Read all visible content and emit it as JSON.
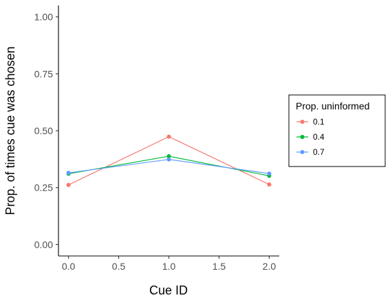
{
  "chart_data": {
    "type": "line",
    "title": "",
    "xlabel": "Cue ID",
    "ylabel": "Prop. of times cue was chosen",
    "xlim": [
      -0.1,
      2.1
    ],
    "ylim": [
      -0.05,
      1.05
    ],
    "x_ticks": [
      0.0,
      0.5,
      1.0,
      1.5,
      2.0
    ],
    "x_tick_labels": [
      "0.0",
      "0.5",
      "1.0",
      "1.5",
      "2.0"
    ],
    "y_ticks": [
      0.0,
      0.25,
      0.5,
      0.75,
      1.0
    ],
    "y_tick_labels": [
      "0.00",
      "0.25",
      "0.50",
      "0.75",
      "1.00"
    ],
    "grid": false,
    "legend": {
      "title": "Prop. uninformed",
      "placement": "right"
    },
    "x": [
      0,
      1,
      2
    ],
    "series": [
      {
        "name": "0.1",
        "color": "#F8766D",
        "values": [
          0.262,
          0.474,
          0.264
        ]
      },
      {
        "name": "0.4",
        "color": "#00BA38",
        "values": [
          0.311,
          0.388,
          0.302
        ]
      },
      {
        "name": "0.7",
        "color": "#619CFF",
        "values": [
          0.315,
          0.374,
          0.312
        ]
      }
    ]
  }
}
